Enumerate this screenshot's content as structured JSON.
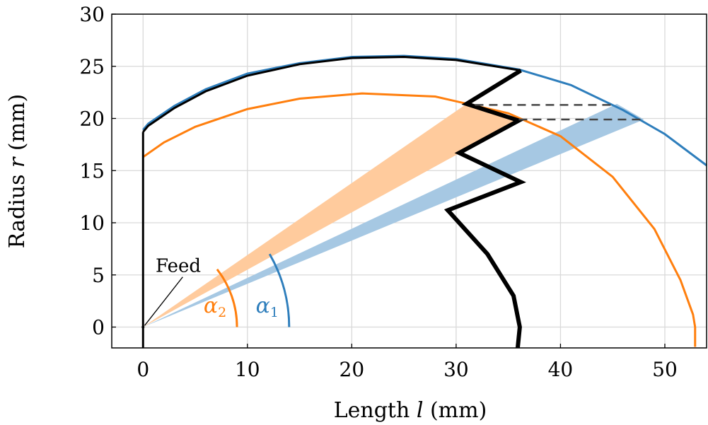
{
  "chart_data": {
    "type": "line",
    "xlabel": {
      "text": "Length ",
      "var": "l",
      "unit": " (mm)"
    },
    "ylabel": {
      "text": "Radius ",
      "var": "r",
      "unit": " (mm)"
    },
    "xlim": [
      -3,
      54
    ],
    "ylim": [
      -2,
      30
    ],
    "xticks": [
      0,
      10,
      20,
      30,
      40,
      50
    ],
    "yticks": [
      0,
      5,
      10,
      15,
      20,
      25,
      30
    ],
    "grid": true,
    "colors": {
      "blue": "#2e7ebc",
      "orange": "#ff7f0e",
      "blue_fill": "#a6c8e3",
      "orange_fill": "#ffcb9d",
      "black": "#000000",
      "dash": "#444444"
    },
    "series": [
      {
        "color": "blue",
        "x": [
          0,
          0.5,
          3,
          6,
          10,
          15,
          20,
          25,
          30,
          36,
          41,
          46,
          50,
          54
        ],
        "y": [
          18.9,
          19.5,
          21.2,
          22.8,
          24.3,
          25.3,
          25.9,
          26.0,
          25.7,
          24.7,
          23.2,
          20.8,
          18.5,
          15.5
        ]
      },
      {
        "color": "black",
        "x": [
          0,
          0.5,
          3,
          6,
          10,
          15,
          20,
          25,
          30,
          36.2
        ],
        "y": [
          18.7,
          19.3,
          21.0,
          22.6,
          24.1,
          25.2,
          25.8,
          25.9,
          25.6,
          24.6
        ]
      },
      {
        "color": "orange",
        "x": [
          0,
          2,
          5,
          10,
          15,
          21,
          28,
          35,
          40,
          45,
          49,
          51.5,
          52.7,
          52.9,
          52.9
        ],
        "y": [
          16.3,
          17.7,
          19.2,
          20.9,
          21.9,
          22.4,
          22.1,
          20.5,
          18.3,
          14.4,
          9.4,
          4.5,
          1.2,
          0,
          -1.9
        ]
      },
      {
        "color": "black",
        "x": [
          0,
          0
        ],
        "y": [
          -2,
          18.7
        ]
      },
      {
        "color": "black",
        "x": [
          36.2,
          31.0,
          36.0,
          30.3,
          36.2,
          29.2,
          33.0,
          35.5,
          36.1,
          35.9
        ],
        "y": [
          24.6,
          21.4,
          19.8,
          16.7,
          13.9,
          11.2,
          7.0,
          3.0,
          0,
          -2
        ]
      }
    ],
    "bands": [
      {
        "color": "orange_fill",
        "vertex": [
          0,
          0
        ],
        "points": [
          [
            36.0,
            19.8
          ],
          [
            31.0,
            21.4
          ]
        ]
      },
      {
        "color": "blue_fill",
        "vertex": [
          0,
          0
        ],
        "points": [
          [
            48.0,
            19.9
          ],
          [
            45.4,
            21.4
          ]
        ]
      }
    ],
    "dashed_lines": [
      {
        "x": [
          31.8,
          45.3
        ],
        "y": [
          21.3,
          21.3
        ]
      },
      {
        "x": [
          36.0,
          48.0
        ],
        "y": [
          19.9,
          19.9
        ]
      }
    ],
    "angle_arcs": [
      {
        "color": "orange",
        "radius": 9,
        "from_deg": 0,
        "to_deg": 38
      },
      {
        "color": "blue",
        "radius": 14,
        "from_deg": 0,
        "to_deg": 30
      }
    ],
    "annotations": [
      {
        "text": "Feed",
        "x": 1.2,
        "y": 5.3,
        "color": "black"
      },
      {
        "sym": "α",
        "sub": "2",
        "x": 5.8,
        "y": 1.4,
        "color": "orange"
      },
      {
        "sym": "α",
        "sub": "1",
        "x": 10.8,
        "y": 1.4,
        "color": "blue"
      }
    ]
  }
}
